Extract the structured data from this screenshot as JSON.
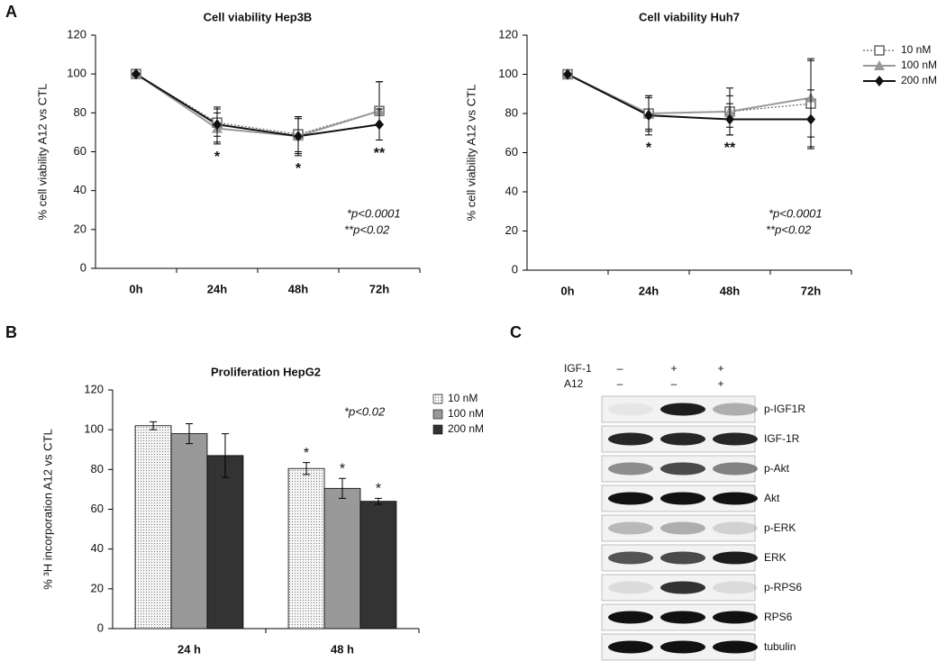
{
  "panels": [
    "A",
    "B",
    "C"
  ],
  "chart_data": [
    {
      "type": "line",
      "title": "Cell viability Hep3B",
      "y_label": "% cell viability A12 vs CTL",
      "categories": [
        "0h",
        "24h",
        "48h",
        "72h"
      ],
      "series": [
        {
          "name": "10 nM",
          "color": "#666666",
          "line_style": "dotted",
          "marker": "square-open",
          "values": [
            100,
            75,
            69,
            81
          ],
          "errors": [
            null,
            7,
            9,
            15
          ]
        },
        {
          "name": "100 nM",
          "color": "#999999",
          "line_style": "solid",
          "marker": "triangle",
          "values": [
            100,
            72,
            68,
            81
          ],
          "errors": [
            null,
            8,
            9,
            15
          ]
        },
        {
          "name": "200 nM",
          "color": "#111111",
          "line_style": "solid",
          "marker": "diamond",
          "values": [
            100,
            74,
            68,
            74
          ],
          "errors": [
            null,
            9,
            10,
            8
          ]
        }
      ],
      "ylim": [
        0,
        120
      ],
      "yticks": [
        0,
        20,
        40,
        60,
        80,
        100,
        120
      ],
      "grid": false,
      "legend": "none",
      "annotations": [
        {
          "text": "*",
          "category": "24h"
        },
        {
          "text": "*",
          "category": "48h"
        },
        {
          "text": "**",
          "category": "72h"
        }
      ],
      "notes": [
        "*p<0.0001",
        "**p<0.02"
      ]
    },
    {
      "type": "line",
      "title": "Cell viability Huh7",
      "y_label": "% cell viability A12 vs CTL",
      "categories": [
        "0h",
        "24h",
        "48h",
        "72h"
      ],
      "series": [
        {
          "name": "10 nM",
          "color": "#666666",
          "line_style": "dotted",
          "marker": "square-open",
          "values": [
            100,
            80,
            81,
            85
          ],
          "errors": [
            null,
            9,
            12,
            22
          ]
        },
        {
          "name": "100 nM",
          "color": "#999999",
          "line_style": "solid",
          "marker": "triangle",
          "values": [
            100,
            80,
            81,
            88
          ],
          "errors": [
            null,
            8,
            8,
            20
          ]
        },
        {
          "name": "200 nM",
          "color": "#111111",
          "line_style": "solid",
          "marker": "diamond",
          "values": [
            100,
            79,
            77,
            77
          ],
          "errors": [
            null,
            10,
            8,
            15
          ]
        }
      ],
      "ylim": [
        0,
        120
      ],
      "yticks": [
        0,
        20,
        40,
        60,
        80,
        100,
        120
      ],
      "grid": false,
      "legend": "right",
      "annotations": [
        {
          "text": "*",
          "category": "24h"
        },
        {
          "text": "**",
          "category": "48h"
        }
      ],
      "notes": [
        "*p<0.0001",
        "**p<0.02"
      ]
    },
    {
      "type": "bar",
      "title": "Proliferation HepG2",
      "y_label": "% ³H incorporation A12 vs CTL",
      "categories": [
        "24 h",
        "48 h"
      ],
      "series": [
        {
          "name": "10 nM",
          "color": "#eeeeee",
          "pattern": "dotted",
          "values": [
            102,
            80.5
          ],
          "errors": [
            2,
            3
          ]
        },
        {
          "name": "100 nM",
          "color": "#999999",
          "values": [
            98,
            70.5
          ],
          "errors": [
            5,
            5
          ]
        },
        {
          "name": "200 nM",
          "color": "#333333",
          "values": [
            87,
            64
          ],
          "errors": [
            11,
            1.5
          ]
        }
      ],
      "ylim": [
        0,
        120
      ],
      "yticks": [
        0,
        20,
        40,
        60,
        80,
        100,
        120
      ],
      "grid": false,
      "legend": "right",
      "annotations": [
        {
          "text": "*",
          "category": "48 h",
          "series": "10 nM"
        },
        {
          "text": "*",
          "category": "48 h",
          "series": "100 nM"
        },
        {
          "text": "*",
          "category": "48 h",
          "series": "200 nM"
        }
      ],
      "notes": [
        "*p<0.02"
      ]
    }
  ],
  "blot": {
    "treatments": [
      {
        "name": "IGF-1",
        "signs": [
          "–",
          "+",
          "+"
        ]
      },
      {
        "name": "A12",
        "signs": [
          "–",
          "–",
          "+"
        ]
      }
    ],
    "proteins": [
      "p-IGF1R",
      "IGF-1R",
      "p-Akt",
      "Akt",
      "p-ERK",
      "ERK",
      "p-RPS6",
      "RPS6",
      "tubulin"
    ]
  }
}
